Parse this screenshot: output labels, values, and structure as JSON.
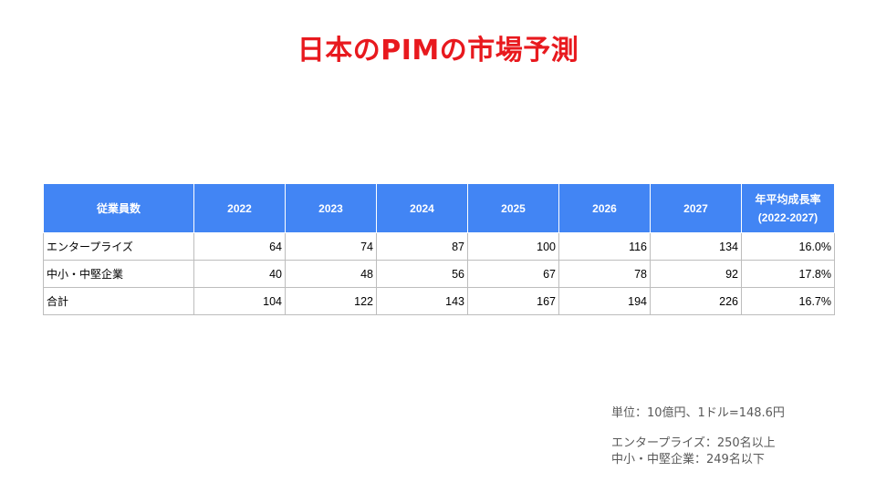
{
  "title": "日本のPIMの市場予測",
  "table": {
    "headers": [
      "従業員数",
      "2022",
      "2023",
      "2024",
      "2025",
      "2026",
      "2027"
    ],
    "cagr_header_line1": "年平均成長率",
    "cagr_header_line2": "(2022-2027)",
    "rows": [
      {
        "label": "エンタープライズ",
        "values": [
          "64",
          "74",
          "87",
          "100",
          "116",
          "134"
        ],
        "cagr": "16.0%"
      },
      {
        "label": "中小・中堅企業",
        "values": [
          "40",
          "48",
          "56",
          "67",
          "78",
          "92"
        ],
        "cagr": "17.8%"
      },
      {
        "label": "合計",
        "values": [
          "104",
          "122",
          "143",
          "167",
          "194",
          "226"
        ],
        "cagr": "16.7%"
      }
    ]
  },
  "notes": {
    "unit": "単位：10億円、1ドル=148.6円",
    "enterprise_def": "エンタープライズ：250名以上",
    "sme_def": "中小・中堅企業：249名以下"
  },
  "colors": {
    "title": "#e8191e",
    "header_bg": "#4285f4",
    "header_text": "#ffffff",
    "note_text": "#595959"
  }
}
